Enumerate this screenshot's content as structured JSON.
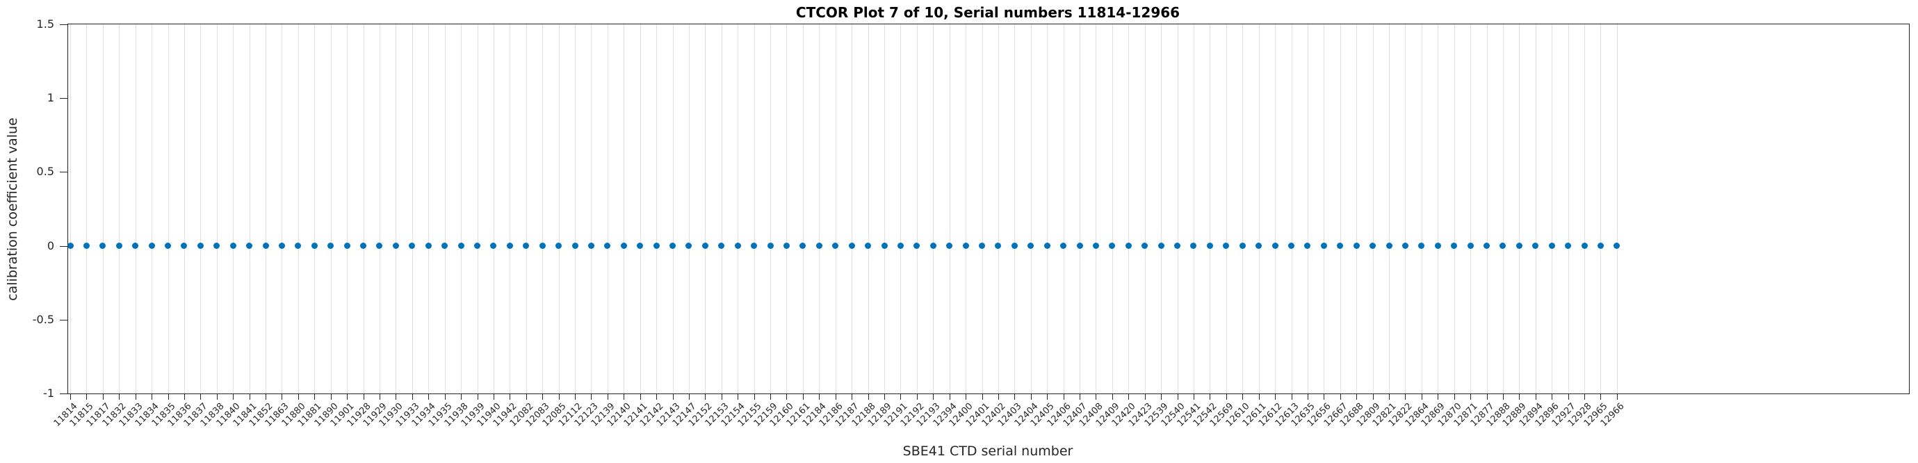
{
  "chart_data": {
    "type": "scatter",
    "title": "CTCOR Plot 7 of 10, Serial numbers 11814-12966",
    "xlabel": "SBE41 CTD serial number",
    "ylabel": "calibration coefficient value",
    "categories": [
      "11814",
      "11815",
      "11817",
      "11832",
      "11833",
      "11834",
      "11835",
      "11836",
      "11837",
      "11838",
      "11840",
      "11841",
      "11852",
      "11863",
      "11880",
      "11881",
      "11890",
      "11901",
      "11928",
      "11929",
      "11930",
      "11933",
      "11934",
      "11935",
      "11938",
      "11939",
      "11940",
      "11942",
      "12082",
      "12083",
      "12085",
      "12112",
      "12123",
      "12139",
      "12140",
      "12141",
      "12142",
      "12143",
      "12147",
      "12152",
      "12153",
      "12154",
      "12155",
      "12159",
      "12160",
      "12161",
      "12184",
      "12186",
      "12187",
      "12188",
      "12189",
      "12191",
      "12192",
      "12193",
      "12394",
      "12400",
      "12401",
      "12402",
      "12403",
      "12404",
      "12405",
      "12406",
      "12407",
      "12408",
      "12409",
      "12420",
      "12423",
      "12539",
      "12540",
      "12541",
      "12542",
      "12569",
      "12610",
      "12611",
      "12612",
      "12613",
      "12635",
      "12656",
      "12667",
      "12688",
      "12809",
      "12821",
      "12822",
      "12864",
      "12869",
      "12870",
      "12871",
      "12877",
      "12888",
      "12889",
      "12894",
      "12896",
      "12927",
      "12928",
      "12965",
      "12966"
    ],
    "series": [
      {
        "name": "CTCOR",
        "values": [
          0,
          0,
          0,
          0,
          0,
          0,
          0,
          0,
          0,
          0,
          0,
          0,
          0,
          0,
          0,
          0,
          0,
          0,
          0,
          0,
          0,
          0,
          0,
          0,
          0,
          0,
          0,
          0,
          0,
          0,
          0,
          0,
          0,
          0,
          0,
          0,
          0,
          0,
          0,
          0,
          0,
          0,
          0,
          0,
          0,
          0,
          0,
          0,
          0,
          0,
          0,
          0,
          0,
          0,
          0,
          0,
          0,
          0,
          0,
          0,
          0,
          0,
          0,
          0,
          0,
          0,
          0,
          0,
          0,
          0,
          0,
          0,
          0,
          0,
          0,
          0,
          0,
          0,
          0,
          0,
          0,
          0,
          0,
          0,
          0,
          0,
          0,
          0,
          0,
          0,
          0,
          0,
          0,
          0,
          0,
          0
        ]
      }
    ],
    "ylim": [
      -1,
      1.5
    ],
    "yticks": [
      1.5,
      1,
      0.5,
      0,
      -0.5,
      -1
    ],
    "ytick_labels": [
      "1.5",
      "1",
      "0.5",
      "0",
      "-0.5",
      "-1"
    ],
    "grid": "vertical-only",
    "legend": "none",
    "marker_color": "#0072BD",
    "axis_color": "#262626",
    "grid_color": "#e0e0e0"
  }
}
